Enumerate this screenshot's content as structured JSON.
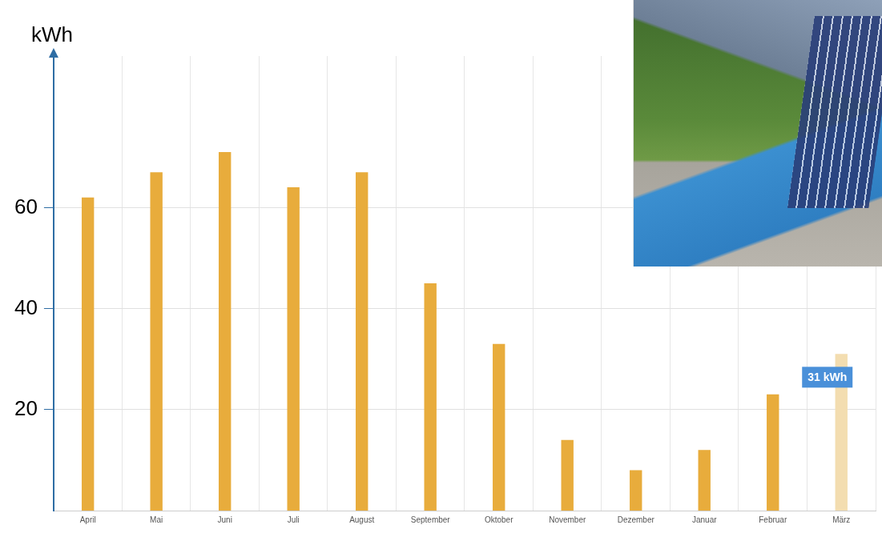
{
  "chart_data": {
    "type": "bar",
    "y_label": "kWh",
    "categories": [
      "April",
      "Mai",
      "Juni",
      "Juli",
      "August",
      "September",
      "Oktober",
      "November",
      "Dezember",
      "Januar",
      "Februar",
      "März"
    ],
    "values": [
      62,
      67,
      71,
      64,
      67,
      45,
      33,
      14,
      8,
      12,
      23,
      31
    ],
    "colors": [
      "#e8ac3c",
      "#e8ac3c",
      "#e8ac3c",
      "#e8ac3c",
      "#e8ac3c",
      "#e8ac3c",
      "#e8ac3c",
      "#e8ac3c",
      "#e8ac3c",
      "#e8ac3c",
      "#e8ac3c",
      "#f3ddb0"
    ],
    "ylim": [
      0,
      90
    ],
    "yticks": [
      20,
      40,
      60
    ],
    "grid": true,
    "annotations": [
      {
        "text": "31 kWh",
        "category": "März"
      }
    ]
  }
}
